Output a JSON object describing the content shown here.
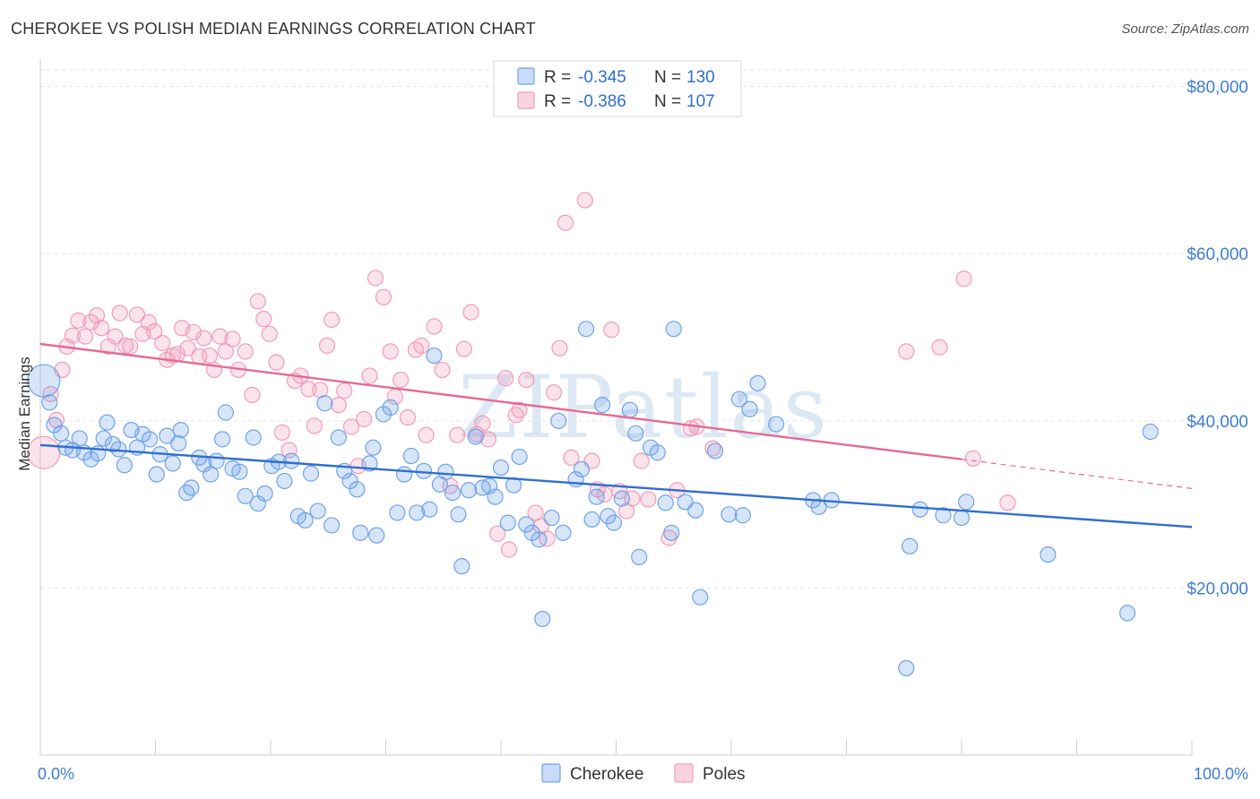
{
  "title": "CHEROKEE VS POLISH MEDIAN EARNINGS CORRELATION CHART",
  "source": "Source: ZipAtlas.com",
  "watermark": "ZIPatlas",
  "legend_stats": [
    {
      "r_label": "R = ",
      "r": "-0.345",
      "n_label": "N = ",
      "n": "130",
      "color": "#6fa3e8"
    },
    {
      "r_label": "R = ",
      "r": "-0.386",
      "n_label": "N = ",
      "n": "107",
      "color": "#f19cb8"
    }
  ],
  "chart_data": {
    "type": "scatter",
    "title": "CHEROKEE VS POLISH MEDIAN EARNINGS CORRELATION CHART",
    "xlabel": "",
    "ylabel": "Median Earnings",
    "xlim": [
      0,
      100
    ],
    "ylim": [
      0,
      82000
    ],
    "x_tick_labels": [
      "0.0%",
      "100.0%"
    ],
    "y_ticks": [
      20000,
      40000,
      60000,
      80000
    ],
    "y_tick_labels": [
      "$20,000",
      "$40,000",
      "$60,000",
      "$80,000"
    ],
    "grid": true,
    "legend_position": "bottom-center",
    "series": [
      {
        "name": "Cherokee",
        "color": "#6fa3e8",
        "line_color": "#2f6fd1",
        "trend": {
          "x": [
            0,
            100
          ],
          "y": [
            37100,
            27300
          ]
        },
        "points": [
          [
            0.3,
            44800
          ],
          [
            0.8,
            42200
          ],
          [
            1.2,
            39500
          ],
          [
            1.8,
            38500
          ],
          [
            2.2,
            36800
          ],
          [
            2.8,
            36500
          ],
          [
            3.4,
            37900
          ],
          [
            3.8,
            36200
          ],
          [
            4.4,
            35400
          ],
          [
            5.0,
            36100
          ],
          [
            5.5,
            37900
          ],
          [
            5.8,
            39800
          ],
          [
            6.3,
            37200
          ],
          [
            6.8,
            36600
          ],
          [
            7.3,
            34700
          ],
          [
            7.9,
            38900
          ],
          [
            8.4,
            36800
          ],
          [
            8.9,
            38400
          ],
          [
            9.5,
            37800
          ],
          [
            10.1,
            33600
          ],
          [
            10.4,
            36000
          ],
          [
            11.0,
            38200
          ],
          [
            11.5,
            34900
          ],
          [
            12.0,
            37300
          ],
          [
            12.2,
            38900
          ],
          [
            12.7,
            31400
          ],
          [
            13.1,
            32000
          ],
          [
            13.8,
            35600
          ],
          [
            14.2,
            34800
          ],
          [
            14.8,
            33600
          ],
          [
            15.3,
            35200
          ],
          [
            15.8,
            37800
          ],
          [
            16.1,
            41000
          ],
          [
            16.7,
            34300
          ],
          [
            17.3,
            33900
          ],
          [
            17.8,
            31000
          ],
          [
            18.5,
            38000
          ],
          [
            18.9,
            30100
          ],
          [
            19.5,
            31300
          ],
          [
            20.1,
            34600
          ],
          [
            20.7,
            35100
          ],
          [
            21.2,
            32800
          ],
          [
            21.8,
            35200
          ],
          [
            22.4,
            28600
          ],
          [
            23.0,
            28100
          ],
          [
            23.5,
            33700
          ],
          [
            24.1,
            29200
          ],
          [
            24.7,
            42100
          ],
          [
            25.3,
            27500
          ],
          [
            25.9,
            38000
          ],
          [
            26.4,
            34000
          ],
          [
            26.9,
            32800
          ],
          [
            27.5,
            31800
          ],
          [
            27.8,
            26600
          ],
          [
            28.6,
            34900
          ],
          [
            28.9,
            36800
          ],
          [
            29.2,
            26300
          ],
          [
            29.8,
            40800
          ],
          [
            30.4,
            41600
          ],
          [
            31.0,
            29000
          ],
          [
            31.6,
            33600
          ],
          [
            32.2,
            35800
          ],
          [
            32.7,
            29000
          ],
          [
            33.3,
            34000
          ],
          [
            33.8,
            29400
          ],
          [
            34.2,
            47800
          ],
          [
            34.7,
            32400
          ],
          [
            35.2,
            33900
          ],
          [
            35.8,
            31400
          ],
          [
            36.3,
            28800
          ],
          [
            36.6,
            22600
          ],
          [
            37.2,
            31700
          ],
          [
            37.8,
            38100
          ],
          [
            38.4,
            32000
          ],
          [
            39.0,
            32200
          ],
          [
            39.5,
            30900
          ],
          [
            40.0,
            34400
          ],
          [
            40.6,
            27800
          ],
          [
            41.1,
            32300
          ],
          [
            41.6,
            35700
          ],
          [
            42.2,
            27600
          ],
          [
            42.7,
            26600
          ],
          [
            43.3,
            25800
          ],
          [
            43.6,
            16300
          ],
          [
            44.4,
            28400
          ],
          [
            45.0,
            40000
          ],
          [
            45.4,
            26600
          ],
          [
            46.5,
            33000
          ],
          [
            47.0,
            34200
          ],
          [
            47.4,
            51000
          ],
          [
            47.9,
            28200
          ],
          [
            48.3,
            30900
          ],
          [
            48.8,
            41900
          ],
          [
            49.3,
            28600
          ],
          [
            49.8,
            27800
          ],
          [
            50.5,
            30700
          ],
          [
            51.2,
            41300
          ],
          [
            51.7,
            38500
          ],
          [
            52.0,
            23700
          ],
          [
            53.0,
            36800
          ],
          [
            53.6,
            36200
          ],
          [
            54.3,
            30200
          ],
          [
            54.8,
            26600
          ],
          [
            55.0,
            51000
          ],
          [
            56.0,
            30300
          ],
          [
            56.9,
            29300
          ],
          [
            57.3,
            18900
          ],
          [
            58.6,
            36400
          ],
          [
            59.8,
            28800
          ],
          [
            60.7,
            42600
          ],
          [
            61.0,
            28700
          ],
          [
            61.6,
            41400
          ],
          [
            62.3,
            44500
          ],
          [
            63.9,
            39600
          ],
          [
            67.1,
            30500
          ],
          [
            67.6,
            29700
          ],
          [
            68.7,
            30500
          ],
          [
            75.2,
            10400
          ],
          [
            75.5,
            25000
          ],
          [
            76.4,
            29400
          ],
          [
            78.4,
            28700
          ],
          [
            80.0,
            28400
          ],
          [
            80.4,
            30300
          ],
          [
            87.5,
            24000
          ],
          [
            94.4,
            17000
          ],
          [
            96.4,
            38700
          ]
        ]
      },
      {
        "name": "Poles",
        "color": "#f19cb8",
        "line_color": "#e36b94",
        "trend": {
          "x": [
            0,
            80
          ],
          "y": [
            49200,
            35400
          ]
        },
        "trend_dashed": {
          "x": [
            80,
            100
          ],
          "y": [
            35400,
            31900
          ]
        },
        "points": [
          [
            0.3,
            36200
          ],
          [
            0.9,
            43200
          ],
          [
            1.4,
            40100
          ],
          [
            1.9,
            46100
          ],
          [
            2.3,
            48900
          ],
          [
            2.8,
            50200
          ],
          [
            3.3,
            52000
          ],
          [
            3.9,
            50100
          ],
          [
            4.4,
            51800
          ],
          [
            4.9,
            52600
          ],
          [
            5.3,
            51100
          ],
          [
            5.9,
            48900
          ],
          [
            6.5,
            50100
          ],
          [
            6.9,
            52900
          ],
          [
            7.4,
            49000
          ],
          [
            7.8,
            48900
          ],
          [
            8.4,
            52700
          ],
          [
            8.9,
            50400
          ],
          [
            9.4,
            51800
          ],
          [
            9.9,
            50700
          ],
          [
            10.6,
            49300
          ],
          [
            11.0,
            47300
          ],
          [
            11.5,
            47800
          ],
          [
            11.9,
            48000
          ],
          [
            12.3,
            51100
          ],
          [
            12.8,
            48700
          ],
          [
            13.3,
            50600
          ],
          [
            13.8,
            47700
          ],
          [
            14.2,
            49900
          ],
          [
            14.7,
            47800
          ],
          [
            15.1,
            46100
          ],
          [
            15.6,
            50100
          ],
          [
            16.1,
            48300
          ],
          [
            16.7,
            49800
          ],
          [
            17.2,
            46100
          ],
          [
            17.8,
            48300
          ],
          [
            18.4,
            43100
          ],
          [
            18.9,
            54300
          ],
          [
            19.4,
            52200
          ],
          [
            19.9,
            50400
          ],
          [
            20.5,
            47000
          ],
          [
            21.0,
            38600
          ],
          [
            21.6,
            36500
          ],
          [
            22.1,
            44800
          ],
          [
            22.6,
            45400
          ],
          [
            23.3,
            43800
          ],
          [
            23.8,
            39400
          ],
          [
            24.3,
            43700
          ],
          [
            24.9,
            49000
          ],
          [
            25.3,
            52100
          ],
          [
            25.9,
            41900
          ],
          [
            26.4,
            43600
          ],
          [
            27.0,
            39300
          ],
          [
            27.6,
            34600
          ],
          [
            28.1,
            40200
          ],
          [
            28.6,
            45400
          ],
          [
            29.1,
            57100
          ],
          [
            29.8,
            54800
          ],
          [
            30.4,
            48300
          ],
          [
            30.8,
            42900
          ],
          [
            31.3,
            44900
          ],
          [
            31.9,
            40400
          ],
          [
            32.6,
            48500
          ],
          [
            33.1,
            49000
          ],
          [
            33.5,
            38300
          ],
          [
            34.2,
            51300
          ],
          [
            34.9,
            46100
          ],
          [
            35.6,
            32200
          ],
          [
            36.2,
            38300
          ],
          [
            36.8,
            48600
          ],
          [
            37.4,
            53000
          ],
          [
            37.9,
            38400
          ],
          [
            38.4,
            39700
          ],
          [
            38.9,
            37800
          ],
          [
            39.7,
            26500
          ],
          [
            40.4,
            45100
          ],
          [
            40.7,
            24600
          ],
          [
            41.3,
            40700
          ],
          [
            41.6,
            41300
          ],
          [
            42.2,
            44900
          ],
          [
            43.0,
            29000
          ],
          [
            43.5,
            27400
          ],
          [
            44.0,
            25900
          ],
          [
            44.6,
            43400
          ],
          [
            45.1,
            48700
          ],
          [
            45.6,
            63700
          ],
          [
            46.1,
            35600
          ],
          [
            47.3,
            66400
          ],
          [
            47.9,
            35200
          ],
          [
            48.4,
            31800
          ],
          [
            49.0,
            31200
          ],
          [
            49.6,
            50900
          ],
          [
            50.3,
            31600
          ],
          [
            50.9,
            29200
          ],
          [
            51.4,
            30700
          ],
          [
            52.2,
            35200
          ],
          [
            52.8,
            30600
          ],
          [
            54.6,
            26000
          ],
          [
            55.3,
            31700
          ],
          [
            56.5,
            39100
          ],
          [
            57.0,
            39300
          ],
          [
            58.4,
            36700
          ],
          [
            75.2,
            48300
          ],
          [
            78.1,
            48800
          ],
          [
            80.2,
            57000
          ],
          [
            81.0,
            35500
          ],
          [
            84.0,
            30200
          ]
        ]
      }
    ]
  }
}
